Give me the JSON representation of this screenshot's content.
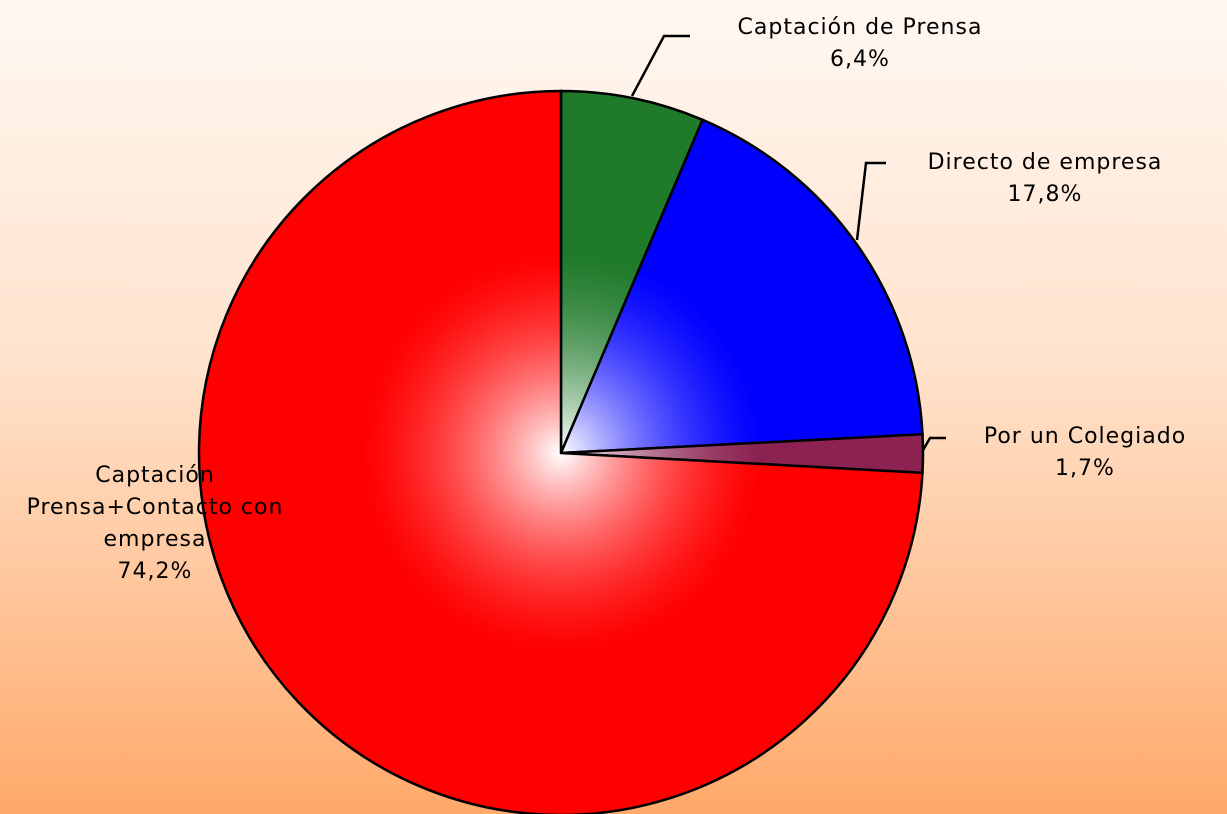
{
  "chart_data": {
    "type": "pie",
    "categories": [
      "Captación de Prensa",
      "Directo de empresa",
      "Por un Colegiado",
      "Captación Prensa+Contacto con empresa"
    ],
    "values": [
      6.4,
      17.8,
      1.7,
      74.2
    ],
    "value_labels": [
      "6,4%",
      "17,8%",
      "1,7%",
      "74,2%"
    ],
    "colors": [
      "#1f7a2a",
      "#0000ff",
      "#8b2252",
      "#ff0000"
    ]
  }
}
